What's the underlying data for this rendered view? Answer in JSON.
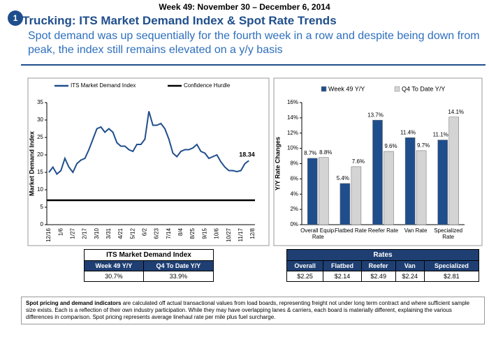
{
  "header": {
    "week": "Week 49: November 30 – December 6, 2014",
    "badge": "1",
    "title": "Trucking: ITS Market Demand Index & Spot Rate Trends",
    "subtitle": "Spot demand was up sequentially for the fourth week in a row and despite being down from peak, the index still remains elevated on a y/y basis"
  },
  "chart_data": [
    {
      "type": "line",
      "ylabel": "Market Demand Index",
      "categories": [
        "12/16",
        null,
        null,
        "1/6",
        null,
        null,
        "1/27",
        null,
        null,
        "2/17",
        null,
        null,
        "3/10",
        null,
        null,
        "3/31",
        null,
        null,
        "4/21",
        null,
        null,
        "5/12",
        null,
        null,
        "6/2",
        null,
        null,
        "6/23",
        null,
        null,
        "7/14",
        null,
        null,
        "8/4",
        null,
        null,
        "8/25",
        null,
        null,
        "9/15",
        null,
        null,
        "10/6",
        null,
        null,
        "10/27",
        null,
        null,
        "11/17",
        null,
        null,
        "12/8"
      ],
      "series": [
        {
          "name": "ITS Market Demand Index",
          "color": "#1f4e8c",
          "values": [
            15,
            16.5,
            14.5,
            15.5,
            19,
            16.5,
            15,
            17.5,
            18.5,
            19,
            21.5,
            24.5,
            27.5,
            28,
            26.5,
            27.5,
            26.5,
            23.5,
            22.5,
            22.5,
            21.5,
            21,
            23,
            23,
            24.5,
            32.5,
            28.5,
            28.5,
            29,
            27.5,
            24.5,
            20.5,
            19.5,
            21,
            21.5,
            21.5,
            22,
            23,
            21,
            20.5,
            19,
            19.5,
            20,
            18,
            16.5,
            15.5,
            15.5,
            15.2,
            15.5,
            17.5,
            18.34,
            null
          ]
        }
      ],
      "reference_lines": [
        {
          "name": "Confidence Hurdle",
          "value": 7,
          "color": "#000000"
        }
      ],
      "ylim": [
        0,
        35
      ],
      "yticks": [
        0,
        5,
        10,
        15,
        20,
        25,
        30,
        35
      ]
    },
    {
      "type": "bar",
      "ylabel": "Y/Y Rate Changes",
      "categories": [
        "Overall Equip. Rate",
        "Flatbed Rate",
        "Reefer  Rate",
        "Van Rate",
        "Specialized Rate"
      ],
      "series": [
        {
          "name": "Week 49 Y/Y",
          "color": "#1f4e8c",
          "values": [
            8.7,
            5.4,
            13.7,
            11.4,
            11.1
          ],
          "value_labels": [
            "8.7%",
            "5.4%",
            "13.7%",
            "11.4%",
            "11.1%"
          ]
        },
        {
          "name": "Q4 To Date Y/Y",
          "color": "#d4d4d4",
          "values": [
            8.8,
            7.6,
            9.6,
            9.7,
            14.1
          ],
          "value_labels": [
            "8.8%",
            "7.6%",
            "9.6%",
            "9.7%",
            "14.1%"
          ]
        }
      ],
      "ylim": [
        0,
        16
      ],
      "yticks": [
        {
          "value": 0,
          "label": "0%"
        },
        {
          "value": 2,
          "label": "2%"
        },
        {
          "value": 4,
          "label": "4%"
        },
        {
          "value": 6,
          "label": "6%"
        },
        {
          "value": 8,
          "label": "8%"
        },
        {
          "value": 10,
          "label": "10%"
        },
        {
          "value": 12,
          "label": "12%"
        },
        {
          "value": 14,
          "label": "14%"
        },
        {
          "value": 16,
          "label": "16%"
        }
      ]
    }
  ],
  "index_table": {
    "title": "ITS Market Demand Index",
    "columns": [
      "Week 49 Y/Y",
      "Q4 To Date Y/Y"
    ],
    "values": [
      "30.7%",
      "33.9%"
    ]
  },
  "rates_table": {
    "title": "Rates",
    "columns": [
      "Overall",
      "Flatbed",
      "Reefer",
      "Van",
      "Specialized"
    ],
    "values": [
      "$2.25",
      "$2.14",
      "$2.49",
      "$2.24",
      "$2.81"
    ]
  },
  "footnote": {
    "lead": "Spot pricing and demand indicators",
    "text": " are calculated off actual transactional  values from load boards, representing freight not under long term contract and where sufficient sample size exists. Each is a reflection of their own industry participation. While they may have overlapping lanes & carriers, each board is materially different, explaining the various differences in comparison. Spot pricing represents average linehaul rate per mile plus fuel surcharge."
  }
}
